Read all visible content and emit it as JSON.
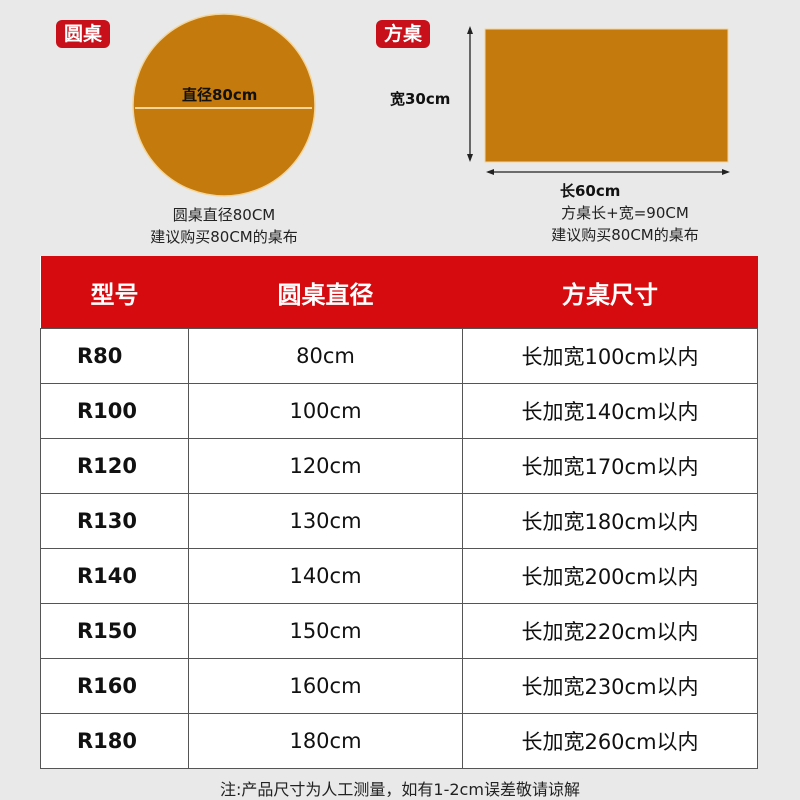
{
  "round_table": {
    "tag": "圆桌",
    "diameter_label": "直径80cm",
    "caption_1": "圆桌直径80CM",
    "caption_2": "建议购买80CM的桌布"
  },
  "square_table": {
    "tag": "方桌",
    "width_label": "宽30cm",
    "length_label": "长60cm",
    "caption_1": "方桌长+宽=90CM",
    "caption_2": "建议购买80CM的桌布"
  },
  "colors": {
    "table_fill": "#c47a0c",
    "accent_red": "#d50b10"
  },
  "table": {
    "headers": [
      "型号",
      "圆桌直径",
      "方桌尺寸"
    ],
    "rows": [
      [
        "R80",
        "80cm",
        "长加宽100cm以内"
      ],
      [
        "R100",
        "100cm",
        "长加宽140cm以内"
      ],
      [
        "R120",
        "120cm",
        "长加宽170cm以内"
      ],
      [
        "R130",
        "130cm",
        "长加宽180cm以内"
      ],
      [
        "R140",
        "140cm",
        "长加宽200cm以内"
      ],
      [
        "R150",
        "150cm",
        "长加宽220cm以内"
      ],
      [
        "R160",
        "160cm",
        "长加宽230cm以内"
      ],
      [
        "R180",
        "180cm",
        "长加宽260cm以内"
      ]
    ]
  },
  "note": "注:产品尺寸为人工测量，如有1-2cm误差敬请谅解"
}
